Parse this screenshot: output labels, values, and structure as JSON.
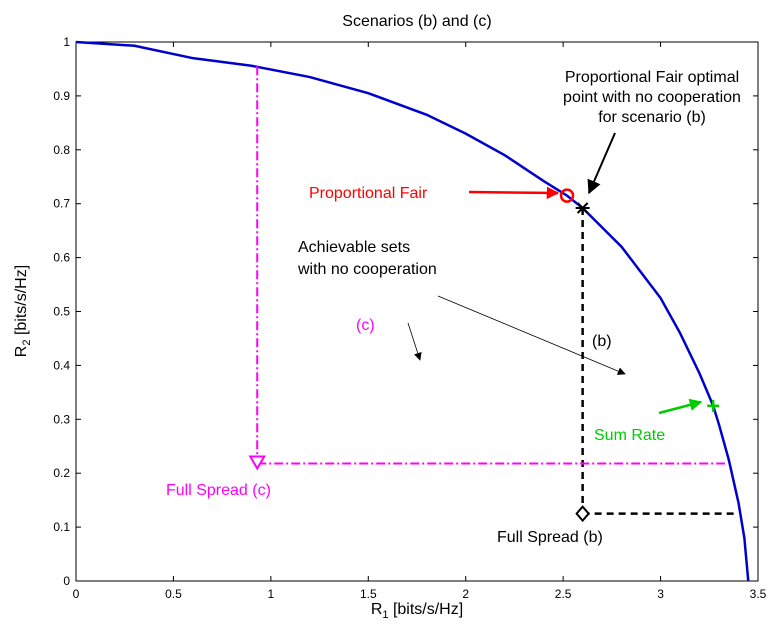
{
  "chart_data": {
    "type": "line",
    "title": "Scenarios (b) and (c)",
    "xlabel_main": "R",
    "xlabel_sub": "1",
    "xlabel_unit": " [bits/s/Hz]",
    "ylabel_main": "R",
    "ylabel_sub": "2",
    "ylabel_unit": " [bits/s/Hz]",
    "xlim": [
      0,
      3.5
    ],
    "ylim": [
      0,
      1
    ],
    "xticks": [
      0,
      0.5,
      1,
      1.5,
      2,
      2.5,
      3,
      3.5
    ],
    "xtick_labels": [
      "0",
      "0.5",
      "1",
      "1.5",
      "2",
      "2.5",
      "3",
      "3.5"
    ],
    "yticks": [
      0,
      0.1,
      0.2,
      0.3,
      0.4,
      0.5,
      0.6,
      0.7,
      0.8,
      0.9,
      1
    ],
    "ytick_labels": [
      "0",
      "0.1",
      "0.2",
      "0.3",
      "0.4",
      "0.5",
      "0.6",
      "0.7",
      "0.8",
      "0.9",
      "1"
    ],
    "grid": false,
    "boundary": {
      "color": "#0000cc",
      "x": [
        0,
        0.3,
        0.6,
        0.9,
        1.2,
        1.5,
        1.8,
        2.0,
        2.2,
        2.4,
        2.52,
        2.6,
        2.8,
        3.0,
        3.1,
        3.2,
        3.27,
        3.3,
        3.35,
        3.4,
        3.43,
        3.45
      ],
      "y": [
        1.0,
        0.993,
        0.97,
        0.956,
        0.935,
        0.905,
        0.865,
        0.83,
        0.79,
        0.742,
        0.715,
        0.692,
        0.62,
        0.525,
        0.46,
        0.385,
        0.325,
        0.29,
        0.225,
        0.145,
        0.08,
        0.0
      ]
    },
    "scenario_b_lines": {
      "color": "#000000",
      "vertical": {
        "x": 2.6,
        "y_from": 0.692,
        "y_to": 0.125
      },
      "horizontal": {
        "y": 0.125,
        "x_from": 2.6,
        "x_to": 3.39
      }
    },
    "scenario_c_lines": {
      "color": "#ff00ff",
      "vertical": {
        "x": 0.93,
        "y_from": 0.955,
        "y_to": 0.218
      },
      "horizontal": {
        "y": 0.218,
        "x_from": 0.93,
        "x_to": 3.33
      }
    },
    "markers": [
      {
        "name": "proportional-fair",
        "shape": "circle",
        "x": 2.52,
        "y": 0.715,
        "color": "#ff0000"
      },
      {
        "name": "pf-no-cooperation",
        "shape": "star",
        "x": 2.6,
        "y": 0.692,
        "color": "#000000"
      },
      {
        "name": "sum-rate",
        "shape": "plus",
        "x": 3.27,
        "y": 0.325,
        "color": "#00cc00"
      },
      {
        "name": "full-spread-b",
        "shape": "diamond",
        "x": 2.6,
        "y": 0.125,
        "color": "#000000"
      },
      {
        "name": "full-spread-c",
        "shape": "triangle-down",
        "x": 0.93,
        "y": 0.218,
        "color": "#ff00ff"
      }
    ],
    "annotations": {
      "proportional_fair": {
        "text": "Proportional Fair",
        "color": "#ff0000"
      },
      "pf_no_coop_line1": "Proportional Fair optimal",
      "pf_no_coop_line2": "point with no cooperation",
      "pf_no_coop_line3": "for scenario (b)",
      "achievable_line1": "Achievable sets",
      "achievable_line2": "with no cooperation",
      "label_c": {
        "text": "(c)",
        "color": "#ff00ff"
      },
      "label_b": "(b)",
      "sum_rate": {
        "text": "Sum Rate",
        "color": "#00cc00"
      },
      "full_spread_c": {
        "text": "Full Spread (c)",
        "color": "#ff00ff"
      },
      "full_spread_b": "Full Spread (b)"
    }
  }
}
